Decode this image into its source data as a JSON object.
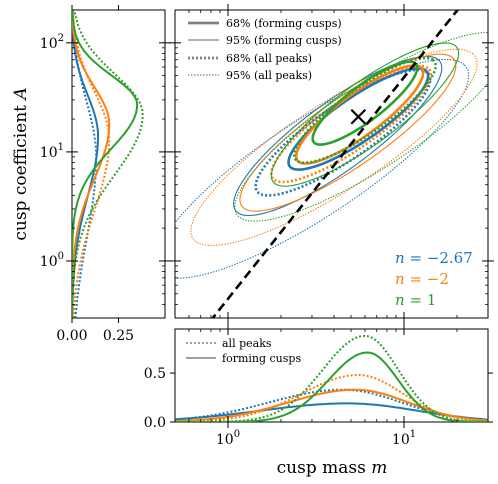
{
  "chart_data": [
    {
      "panel": "main",
      "type": "contour",
      "xlabel": "cusp mass m",
      "ylabel": "cusp coefficient A",
      "xscale": "log",
      "yscale": "log",
      "xlim": [
        0.5,
        30
      ],
      "ylim": [
        0.3,
        200
      ],
      "x_ticks": [
        {
          "value": 1,
          "label": "10^0"
        },
        {
          "value": 10,
          "label": "10^1"
        }
      ],
      "y_ticks": [
        {
          "value": 1,
          "label": "10^0"
        },
        {
          "value": 10,
          "label": "10^1"
        },
        {
          "value": 100,
          "label": "10^2"
        }
      ],
      "legend": {
        "position": "top-left",
        "entries": [
          {
            "label": "68% (forming cusps)",
            "style": "thick-solid"
          },
          {
            "label": "95% (forming cusps)",
            "style": "thin-solid"
          },
          {
            "label": "68% (all peaks)",
            "style": "thick-dotted"
          },
          {
            "label": "95% (all peaks)",
            "style": "thin-dotted"
          }
        ]
      },
      "series_labels": [
        {
          "name": "n",
          "value": "−2.67",
          "color": "#1f77b4"
        },
        {
          "name": "n",
          "value": "−2",
          "color": "#ff7f0e"
        },
        {
          "name": "n",
          "value": "1",
          "color": "#2ca02c"
        }
      ],
      "marker": {
        "x": 5.5,
        "y": 21
      },
      "reference_line": {
        "x": [
          0.5,
          30
        ],
        "y": [
          0.11,
          450
        ],
        "style": "dashed"
      },
      "contours": [
        {
          "color": "#1f77b4",
          "level": "68%",
          "set": "forming",
          "cx": 5.5,
          "cy": 20,
          "sx": 0.55,
          "sy": 0.62,
          "rot": 1.12
        },
        {
          "color": "#1f77b4",
          "level": "95%",
          "set": "forming",
          "cx": 4.2,
          "cy": 14,
          "sx": 0.8,
          "sy": 1.0,
          "rot": 1.08
        },
        {
          "color": "#1f77b4",
          "level": "68%",
          "set": "all",
          "cx": 4.5,
          "cy": 15,
          "sx": 0.68,
          "sy": 0.78,
          "rot": 1.1
        },
        {
          "color": "#1f77b4",
          "level": "95%",
          "set": "all",
          "cx": 3.0,
          "cy": 7,
          "sx": 1.15,
          "sy": 1.45,
          "rot": 1.0
        },
        {
          "color": "#ff7f0e",
          "level": "68%",
          "set": "forming",
          "cx": 5.6,
          "cy": 22,
          "sx": 0.5,
          "sy": 0.6,
          "rot": 1.12
        },
        {
          "color": "#ff7f0e",
          "level": "95%",
          "set": "forming",
          "cx": 4.8,
          "cy": 15,
          "sx": 0.82,
          "sy": 1.0,
          "rot": 1.06
        },
        {
          "color": "#ff7f0e",
          "level": "68%",
          "set": "all",
          "cx": 5.0,
          "cy": 18,
          "sx": 0.62,
          "sy": 0.72,
          "rot": 1.1
        },
        {
          "color": "#ff7f0e",
          "level": "95%",
          "set": "all",
          "cx": 4.0,
          "cy": 11,
          "sx": 1.05,
          "sy": 1.3,
          "rot": 1.0
        },
        {
          "color": "#2ca02c",
          "level": "68%",
          "set": "forming",
          "cx": 6.0,
          "cy": 28,
          "sx": 0.42,
          "sy": 0.5,
          "rot": 1.15
        },
        {
          "color": "#2ca02c",
          "level": "95%",
          "set": "forming",
          "cx": 6.0,
          "cy": 22,
          "sx": 0.72,
          "sy": 0.9,
          "rot": 1.08
        },
        {
          "color": "#2ca02c",
          "level": "68%",
          "set": "all",
          "cx": 6.0,
          "cy": 24,
          "sx": 0.55,
          "sy": 0.65,
          "rot": 1.1
        },
        {
          "color": "#2ca02c",
          "level": "95%",
          "set": "all",
          "cx": 6.5,
          "cy": 17,
          "sx": 1.0,
          "sy": 1.25,
          "rot": 1.0
        }
      ]
    },
    {
      "panel": "left-marginal",
      "type": "line",
      "x_ticks": [
        {
          "value": 0,
          "label": "0.00"
        },
        {
          "value": 0.25,
          "label": "0.25"
        }
      ],
      "xlim": [
        0,
        0.5
      ],
      "series": [
        {
          "color": "#1f77b4",
          "set": "forming",
          "peak_A": 14,
          "peak_density": 0.14,
          "width": 0.55
        },
        {
          "color": "#1f77b4",
          "set": "all",
          "peak_A": 9,
          "peak_density": 0.13,
          "width": 0.75
        },
        {
          "color": "#ff7f0e",
          "set": "forming",
          "peak_A": 18,
          "peak_density": 0.2,
          "width": 0.5
        },
        {
          "color": "#ff7f0e",
          "set": "all",
          "peak_A": 13,
          "peak_density": 0.2,
          "width": 0.65
        },
        {
          "color": "#2ca02c",
          "set": "forming",
          "peak_A": 27,
          "peak_density": 0.35,
          "width": 0.4
        },
        {
          "color": "#2ca02c",
          "set": "all",
          "peak_A": 22,
          "peak_density": 0.38,
          "width": 0.55
        }
      ]
    },
    {
      "panel": "bottom-marginal",
      "type": "line",
      "y_ticks": [
        {
          "value": 0,
          "label": "0.0"
        },
        {
          "value": 0.5,
          "label": "0.5"
        }
      ],
      "ylim": [
        0,
        0.95
      ],
      "legend": {
        "position": "top-left",
        "entries": [
          {
            "label": "all peaks",
            "style": "dotted"
          },
          {
            "label": "forming cusps",
            "style": "solid"
          }
        ]
      },
      "series": [
        {
          "color": "#1f77b4",
          "set": "forming",
          "peak_m": 4.8,
          "peak_density": 0.19,
          "width": 0.5
        },
        {
          "color": "#1f77b4",
          "set": "all",
          "peak_m": 4.5,
          "peak_density": 0.33,
          "width": 0.42
        },
        {
          "color": "#ff7f0e",
          "set": "forming",
          "peak_m": 5.3,
          "peak_density": 0.33,
          "width": 0.38
        },
        {
          "color": "#ff7f0e",
          "set": "all",
          "peak_m": 5.5,
          "peak_density": 0.48,
          "width": 0.32
        },
        {
          "color": "#2ca02c",
          "set": "forming",
          "peak_m": 6.2,
          "peak_density": 0.71,
          "width": 0.22
        },
        {
          "color": "#2ca02c",
          "set": "all",
          "peak_m": 6.0,
          "peak_density": 0.88,
          "width": 0.24
        }
      ]
    }
  ]
}
